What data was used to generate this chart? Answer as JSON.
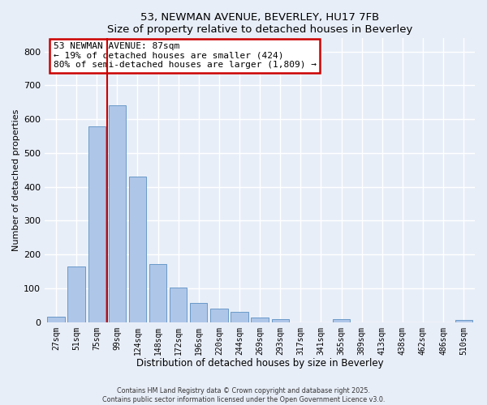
{
  "title1": "53, NEWMAN AVENUE, BEVERLEY, HU17 7FB",
  "title2": "Size of property relative to detached houses in Beverley",
  "xlabel": "Distribution of detached houses by size in Beverley",
  "ylabel": "Number of detached properties",
  "categories": [
    "27sqm",
    "51sqm",
    "75sqm",
    "99sqm",
    "124sqm",
    "148sqm",
    "172sqm",
    "196sqm",
    "220sqm",
    "244sqm",
    "269sqm",
    "293sqm",
    "317sqm",
    "341sqm",
    "365sqm",
    "389sqm",
    "413sqm",
    "438sqm",
    "462sqm",
    "486sqm",
    "510sqm"
  ],
  "values": [
    17,
    165,
    580,
    640,
    430,
    172,
    103,
    56,
    40,
    30,
    14,
    10,
    0,
    0,
    8,
    0,
    0,
    0,
    0,
    0,
    6
  ],
  "bar_color": "#aec6e8",
  "bar_edge_color": "#5a8fc2",
  "background_color": "#e8eef8",
  "grid_color": "#ffffff",
  "vline_x": 2.5,
  "vline_color": "#cc0000",
  "annotation_text": "53 NEWMAN AVENUE: 87sqm\n← 19% of detached houses are smaller (424)\n80% of semi-detached houses are larger (1,809) →",
  "annotation_box_color": "#ffffff",
  "annotation_box_edge_color": "#cc0000",
  "footnote1": "Contains HM Land Registry data © Crown copyright and database right 2025.",
  "footnote2": "Contains public sector information licensed under the Open Government Licence v3.0.",
  "ylim": [
    0,
    840
  ],
  "yticks": [
    0,
    100,
    200,
    300,
    400,
    500,
    600,
    700,
    800
  ]
}
